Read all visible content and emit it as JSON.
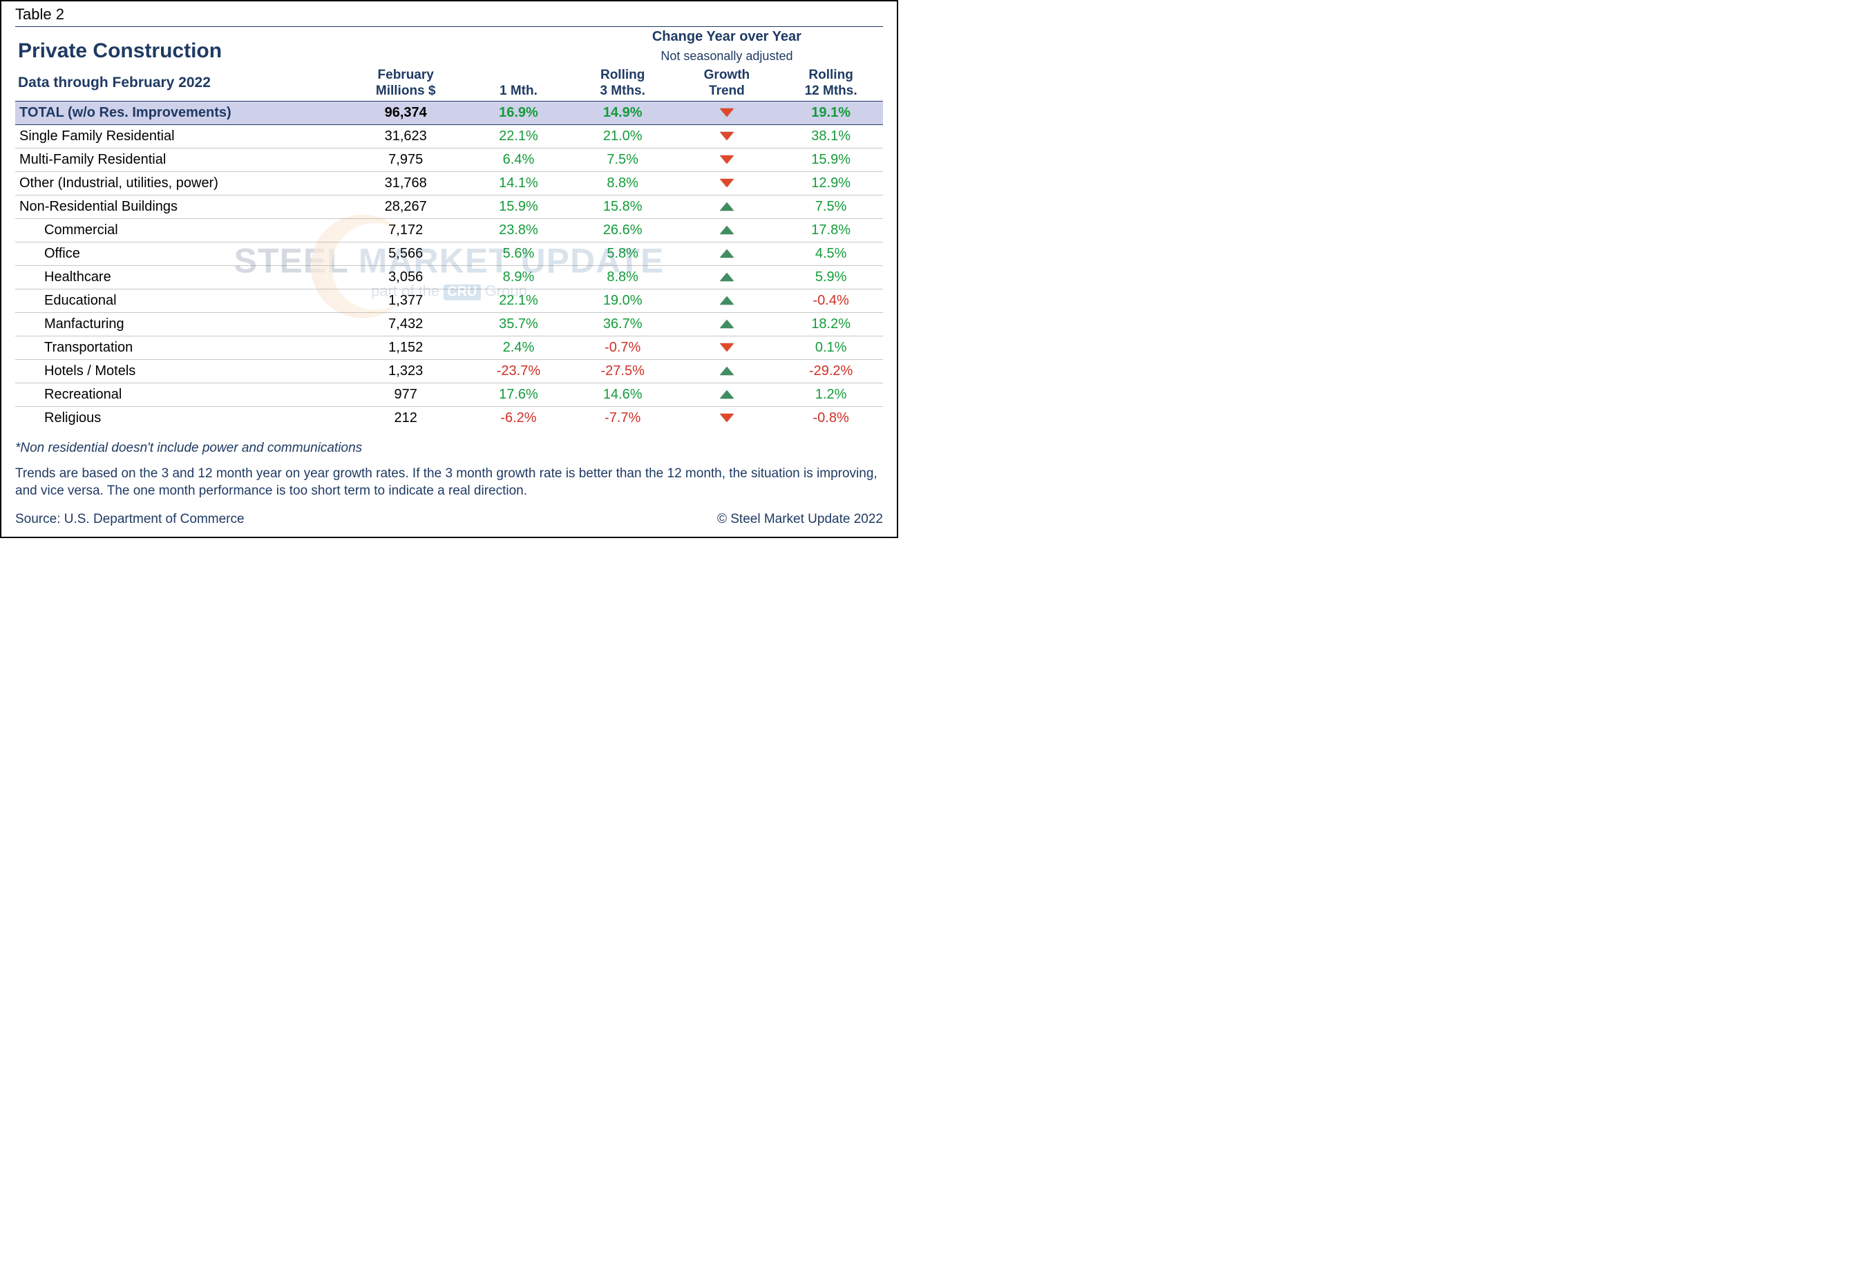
{
  "table_label": "Table 2",
  "title": "Private Construction",
  "subtitle": "Data through February 2022",
  "colors": {
    "heading": "#1f3a63",
    "positive": "#149b3a",
    "negative": "#d03026",
    "total_row_bg": "#cfd1eb",
    "row_border": "#c7c7c7",
    "triangle_up": "#3f8d60",
    "triangle_down": "#e0482c",
    "background": "#ffffff",
    "outer_border": "#000000"
  },
  "typography": {
    "family": "Arial",
    "title_size_pt": 22,
    "subtitle_size_pt": 16,
    "header_size_pt": 14,
    "body_size_pt": 15,
    "footnote_size_pt": 14
  },
  "columns": {
    "c1_l1": "February",
    "c1_l2": "Millions $",
    "group_title": "Change Year over Year",
    "group_sub": "Not seasonally adjusted",
    "c2": "1 Mth.",
    "c3_l1": "Rolling",
    "c3_l2": "3 Mths.",
    "c4_l1": "Growth",
    "c4_l2": "Trend",
    "c5_l1": "Rolling",
    "c5_l2": "12 Mths."
  },
  "rows": [
    {
      "label": "TOTAL (w/o Res. Improvements)",
      "value": "96,374",
      "m1": "16.9%",
      "m1s": "pos",
      "m3": "14.9%",
      "m3s": "pos",
      "trend": "down",
      "m12": "19.1%",
      "m12s": "pos",
      "total": true,
      "indent": false
    },
    {
      "label": "Single Family Residential",
      "value": "31,623",
      "m1": "22.1%",
      "m1s": "pos",
      "m3": "21.0%",
      "m3s": "pos",
      "trend": "down",
      "m12": "38.1%",
      "m12s": "pos",
      "total": false,
      "indent": false
    },
    {
      "label": "Multi-Family Residential",
      "value": "7,975",
      "m1": "6.4%",
      "m1s": "pos",
      "m3": "7.5%",
      "m3s": "pos",
      "trend": "down",
      "m12": "15.9%",
      "m12s": "pos",
      "total": false,
      "indent": false
    },
    {
      "label": "Other (Industrial, utilities, power)",
      "value": "31,768",
      "m1": "14.1%",
      "m1s": "pos",
      "m3": "8.8%",
      "m3s": "pos",
      "trend": "down",
      "m12": "12.9%",
      "m12s": "pos",
      "total": false,
      "indent": false
    },
    {
      "label": "Non-Residential Buildings",
      "value": "28,267",
      "m1": "15.9%",
      "m1s": "pos",
      "m3": "15.8%",
      "m3s": "pos",
      "trend": "up",
      "m12": "7.5%",
      "m12s": "pos",
      "total": false,
      "indent": false
    },
    {
      "label": "Commercial",
      "value": "7,172",
      "m1": "23.8%",
      "m1s": "pos",
      "m3": "26.6%",
      "m3s": "pos",
      "trend": "up",
      "m12": "17.8%",
      "m12s": "pos",
      "total": false,
      "indent": true
    },
    {
      "label": "Office",
      "value": "5,566",
      "m1": "5.6%",
      "m1s": "pos",
      "m3": "5.8%",
      "m3s": "pos",
      "trend": "up",
      "m12": "4.5%",
      "m12s": "pos",
      "total": false,
      "indent": true
    },
    {
      "label": "Healthcare",
      "value": "3,056",
      "m1": "8.9%",
      "m1s": "pos",
      "m3": "8.8%",
      "m3s": "pos",
      "trend": "up",
      "m12": "5.9%",
      "m12s": "pos",
      "total": false,
      "indent": true
    },
    {
      "label": "Educational",
      "value": "1,377",
      "m1": "22.1%",
      "m1s": "pos",
      "m3": "19.0%",
      "m3s": "pos",
      "trend": "up",
      "m12": "-0.4%",
      "m12s": "neg",
      "total": false,
      "indent": true
    },
    {
      "label": "Manfacturing",
      "value": "7,432",
      "m1": "35.7%",
      "m1s": "pos",
      "m3": "36.7%",
      "m3s": "pos",
      "trend": "up",
      "m12": "18.2%",
      "m12s": "pos",
      "total": false,
      "indent": true
    },
    {
      "label": "Transportation",
      "value": "1,152",
      "m1": "2.4%",
      "m1s": "pos",
      "m3": "-0.7%",
      "m3s": "neg",
      "trend": "down",
      "m12": "0.1%",
      "m12s": "pos",
      "total": false,
      "indent": true
    },
    {
      "label": "Hotels / Motels",
      "value": "1,323",
      "m1": "-23.7%",
      "m1s": "neg",
      "m3": "-27.5%",
      "m3s": "neg",
      "trend": "up",
      "m12": "-29.2%",
      "m12s": "neg",
      "total": false,
      "indent": true
    },
    {
      "label": "Recreational",
      "value": "977",
      "m1": "17.6%",
      "m1s": "pos",
      "m3": "14.6%",
      "m3s": "pos",
      "trend": "up",
      "m12": "1.2%",
      "m12s": "pos",
      "total": false,
      "indent": true
    },
    {
      "label": "Religious",
      "value": "212",
      "m1": "-6.2%",
      "m1s": "neg",
      "m3": "-7.7%",
      "m3s": "neg",
      "trend": "down",
      "m12": "-0.8%",
      "m12s": "neg",
      "total": false,
      "indent": true
    }
  ],
  "footnote": "*Non residential doesn't include power and communications",
  "description": "Trends are based on the 3 and 12 month year on year growth rates. If the 3 month growth rate is better than the 12 month, the situation is improving, and vice versa. The one month performance is too short term to indicate a real direction.",
  "source": "Source: U.S. Department of Commerce",
  "copyright": "© Steel Market Update 2022",
  "watermark": {
    "line1_a": "STEEL",
    "line1_b": " MARKET UPDATE",
    "line2_a": "part of the ",
    "line2_cru": "CRU",
    "line2_b": " Group"
  }
}
